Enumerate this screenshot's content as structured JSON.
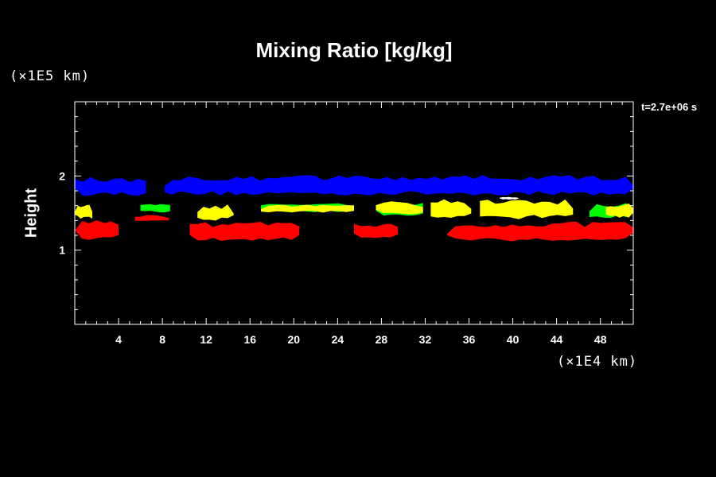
{
  "chart_data": {
    "type": "heatmap",
    "title": "Mixing Ratio [kg/kg]",
    "ylabel": "Height",
    "y_multiplier_label": "(×1E5 km)",
    "x_multiplier_label": "(×1E4 km)",
    "time_label": "t=2.7e+06 s",
    "xlim": [
      0,
      51
    ],
    "ylim": [
      0,
      3
    ],
    "x_ticks": [
      4,
      8,
      12,
      16,
      20,
      24,
      28,
      32,
      36,
      40,
      44,
      48
    ],
    "y_ticks": [
      1,
      2
    ],
    "colors": {
      "background": "#000000",
      "blue": "#0000ff",
      "green": "#00ff00",
      "yellow": "#ffff00",
      "red": "#ff0000",
      "white": "#ffffff"
    },
    "regions": [
      {
        "color": "blue",
        "x": [
          0,
          6.5
        ],
        "y": [
          1.72,
          2.0
        ]
      },
      {
        "color": "blue",
        "x": [
          8.2,
          51
        ],
        "y": [
          1.72,
          2.03
        ]
      },
      {
        "color": "yellow",
        "x": [
          0,
          1.6
        ],
        "y": [
          1.4,
          1.65
        ]
      },
      {
        "color": "green",
        "x": [
          6.0,
          8.7
        ],
        "y": [
          1.5,
          1.63
        ]
      },
      {
        "color": "yellow",
        "x": [
          11.2,
          14.5
        ],
        "y": [
          1.38,
          1.63
        ]
      },
      {
        "color": "green",
        "x": [
          17.0,
          25.5
        ],
        "y": [
          1.5,
          1.65
        ]
      },
      {
        "color": "yellow",
        "x": [
          17.0,
          25.5
        ],
        "y": [
          1.5,
          1.62
        ]
      },
      {
        "color": "green",
        "x": [
          27.5,
          31.8
        ],
        "y": [
          1.45,
          1.67
        ]
      },
      {
        "color": "yellow",
        "x": [
          27.5,
          31.8
        ],
        "y": [
          1.45,
          1.67
        ]
      },
      {
        "color": "yellow",
        "x": [
          32.5,
          36.2
        ],
        "y": [
          1.42,
          1.7
        ]
      },
      {
        "color": "white",
        "x": [
          38.8,
          40.5
        ],
        "y": [
          1.68,
          1.72
        ]
      },
      {
        "color": "yellow",
        "x": [
          37.0,
          45.5
        ],
        "y": [
          1.4,
          1.7
        ]
      },
      {
        "color": "green",
        "x": [
          47.0,
          51
        ],
        "y": [
          1.42,
          1.65
        ]
      },
      {
        "color": "yellow",
        "x": [
          48.5,
          51
        ],
        "y": [
          1.42,
          1.65
        ]
      },
      {
        "color": "red",
        "x": [
          0,
          4.0
        ],
        "y": [
          1.12,
          1.43
        ]
      },
      {
        "color": "red",
        "x": [
          5.5,
          8.6
        ],
        "y": [
          1.38,
          1.48
        ]
      },
      {
        "color": "red",
        "x": [
          10.5,
          20.5
        ],
        "y": [
          1.1,
          1.4
        ]
      },
      {
        "color": "red",
        "x": [
          25.5,
          29.5
        ],
        "y": [
          1.15,
          1.38
        ]
      },
      {
        "color": "red",
        "x": [
          34.0,
          51
        ],
        "y": [
          1.1,
          1.4
        ]
      }
    ]
  }
}
